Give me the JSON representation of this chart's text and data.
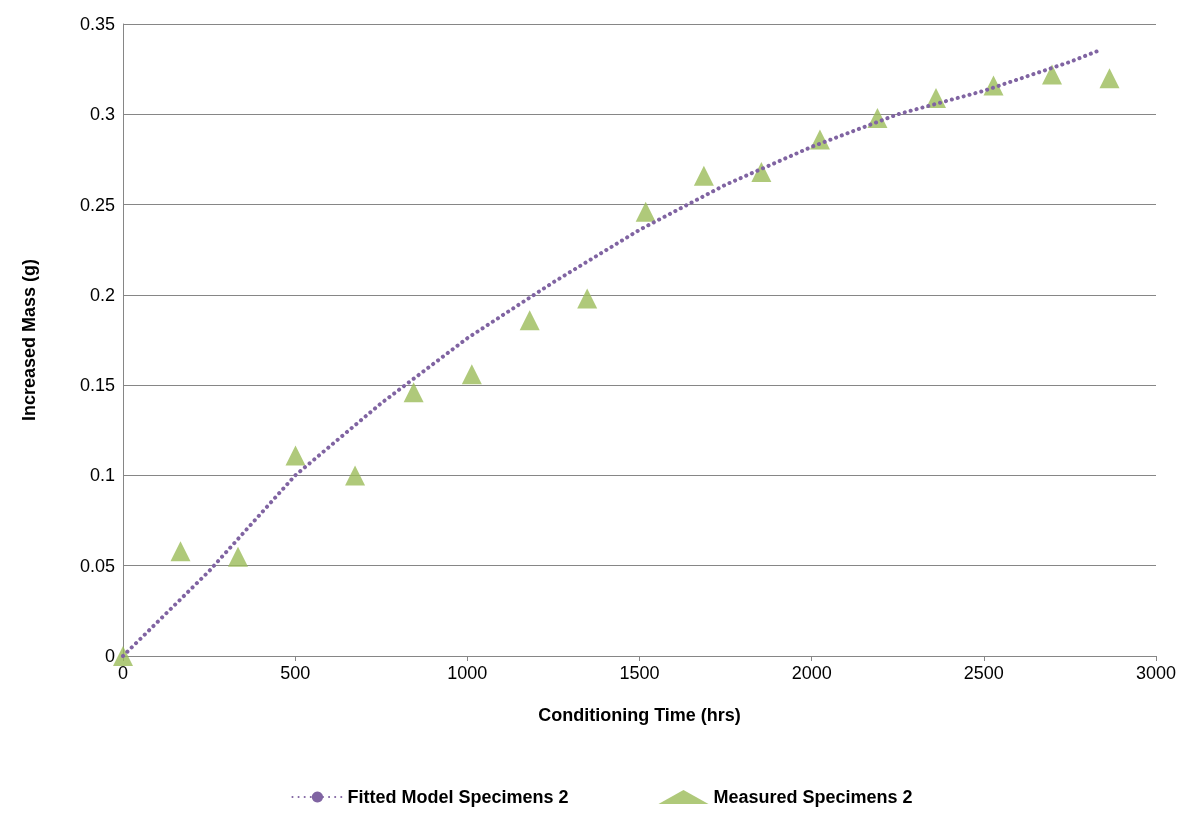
{
  "chart_data": {
    "type": "scatter",
    "xlabel": "Conditioning Time (hrs)",
    "ylabel": "Increased Mass (g)",
    "xlim": [
      0,
      3000
    ],
    "xticks": [
      0,
      500,
      1000,
      1500,
      2000,
      2500,
      3000
    ],
    "ylim": [
      0,
      0.35
    ],
    "yticks": [
      0,
      0.05,
      0.1,
      0.15,
      0.2,
      0.25,
      0.3,
      0.35
    ],
    "grid": "y",
    "legend": "bottom",
    "series": [
      {
        "name": "Fitted Model Specimens 2",
        "type": "line",
        "color": "#8064a2",
        "marker": "none",
        "line_style": "dotted",
        "x": [
          0,
          250,
          500,
          750,
          1000,
          1250,
          1500,
          1750,
          2000,
          2250,
          2500,
          2750,
          2830
        ],
        "values": [
          0,
          0.047,
          0.1,
          0.14,
          0.176,
          0.207,
          0.236,
          0.261,
          0.282,
          0.3,
          0.313,
          0.329,
          0.335
        ]
      },
      {
        "name": "Measured Specimens 2",
        "color": "#9bbb59",
        "marker": "triangle",
        "x": [
          0,
          167,
          334,
          501,
          674,
          844,
          1013,
          1181,
          1348,
          1518,
          1687,
          1854,
          2024,
          2191,
          2361,
          2528,
          2698,
          2865
        ],
        "values": [
          0,
          0.058,
          0.055,
          0.111,
          0.1,
          0.146,
          0.156,
          0.186,
          0.198,
          0.246,
          0.266,
          0.268,
          0.286,
          0.298,
          0.309,
          0.316,
          0.322,
          0.32
        ]
      }
    ]
  }
}
